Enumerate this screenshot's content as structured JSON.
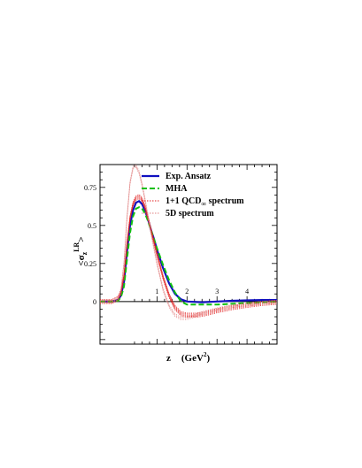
{
  "chart_data": {
    "type": "line",
    "title": "",
    "xlabel": {
      "var": "z",
      "unit": "(GeV",
      "sup": "2",
      "close": ")"
    },
    "ylabel": {
      "open": "<σ",
      "sub": "z",
      "sup": "LR",
      "close": ">"
    },
    "xlim": [
      -0.9,
      5.0
    ],
    "ylim": [
      -0.28,
      0.9
    ],
    "x_ticks": [
      {
        "value": 1,
        "label": "1"
      },
      {
        "value": 2,
        "label": "2"
      },
      {
        "value": 3,
        "label": "3"
      },
      {
        "value": 4,
        "label": "4"
      }
    ],
    "y_ticks": [
      {
        "value": 0,
        "label": "0"
      },
      {
        "value": 0.25,
        "label": "0.25"
      },
      {
        "value": 0.5,
        "label": "0.5"
      },
      {
        "value": 0.75,
        "label": "0.75"
      }
    ],
    "grid": false,
    "legend_position": "top-right",
    "series": [
      {
        "name": "Exp. Ansatz",
        "color": "#1010c0",
        "style": "solid",
        "x": [
          -0.9,
          -0.5,
          -0.3,
          -0.2,
          -0.1,
          0.0,
          0.1,
          0.2,
          0.3,
          0.4,
          0.5,
          0.6,
          0.7,
          0.8,
          0.9,
          1.0,
          1.2,
          1.4,
          1.6,
          1.8,
          2.0,
          2.5,
          3.0,
          3.5,
          4.0,
          4.5,
          5.0
        ],
        "y": [
          0.0,
          0.0,
          0.01,
          0.04,
          0.13,
          0.33,
          0.5,
          0.6,
          0.65,
          0.66,
          0.64,
          0.6,
          0.54,
          0.47,
          0.41,
          0.34,
          0.22,
          0.12,
          0.05,
          0.015,
          0.0,
          -0.005,
          0.0,
          0.005,
          0.008,
          0.01,
          0.01
        ]
      },
      {
        "name": "MHA",
        "color": "#10c010",
        "style": "dashed",
        "x": [
          -0.9,
          -0.5,
          -0.3,
          -0.2,
          -0.1,
          0.0,
          0.1,
          0.2,
          0.3,
          0.4,
          0.5,
          0.6,
          0.7,
          0.8,
          0.9,
          1.0,
          1.2,
          1.4,
          1.6,
          1.8,
          2.0,
          2.5,
          3.0,
          3.5,
          4.0,
          4.5,
          5.0
        ],
        "y": [
          0.0,
          0.0,
          0.005,
          0.03,
          0.1,
          0.28,
          0.45,
          0.56,
          0.61,
          0.62,
          0.61,
          0.58,
          0.53,
          0.47,
          0.41,
          0.35,
          0.24,
          0.14,
          0.06,
          0.0,
          -0.02,
          -0.02,
          -0.02,
          -0.015,
          -0.01,
          -0.005,
          0.0
        ]
      },
      {
        "name": "1+1 QCD∞ spectrum",
        "color": "#e02020",
        "style": "dotted-band",
        "x": [
          -0.9,
          -0.5,
          -0.3,
          -0.2,
          -0.1,
          0.0,
          0.1,
          0.2,
          0.3,
          0.4,
          0.5,
          0.6,
          0.7,
          0.8,
          0.9,
          1.0,
          1.2,
          1.4,
          1.6,
          1.8,
          2.0,
          2.3,
          2.6,
          3.0,
          3.5,
          4.0,
          4.5,
          5.0
        ],
        "y": [
          0.0,
          0.0,
          0.02,
          0.06,
          0.17,
          0.38,
          0.55,
          0.64,
          0.68,
          0.69,
          0.67,
          0.62,
          0.55,
          0.47,
          0.39,
          0.31,
          0.16,
          0.04,
          -0.04,
          -0.08,
          -0.09,
          -0.09,
          -0.08,
          -0.06,
          -0.04,
          -0.025,
          -0.012,
          -0.005
        ]
      },
      {
        "name": "5D spectrum",
        "color": "#e08080",
        "style": "dotted",
        "x": [
          -0.9,
          -0.5,
          -0.3,
          -0.2,
          -0.1,
          0.0,
          0.1,
          0.2,
          0.3,
          0.4,
          0.5,
          0.6,
          0.7,
          0.8,
          0.9,
          1.0,
          1.2,
          1.4,
          1.6,
          1.8,
          2.0,
          2.3,
          2.6,
          3.0,
          3.5,
          4.0,
          4.5,
          5.0
        ],
        "y": [
          0.0,
          0.0,
          0.02,
          0.08,
          0.25,
          0.55,
          0.78,
          0.88,
          0.89,
          0.85,
          0.77,
          0.67,
          0.56,
          0.45,
          0.35,
          0.25,
          0.08,
          -0.03,
          -0.09,
          -0.11,
          -0.11,
          -0.09,
          -0.07,
          -0.05,
          -0.03,
          -0.02,
          -0.01,
          0.0
        ]
      }
    ],
    "legend_label_parts": [
      {
        "text": "Exp. Ansatz"
      },
      {
        "text": "MHA"
      },
      {
        "text": "1+1 QCD",
        "sub": "∞",
        "after": " spectrum"
      },
      {
        "text": "5D  spectrum"
      }
    ]
  }
}
